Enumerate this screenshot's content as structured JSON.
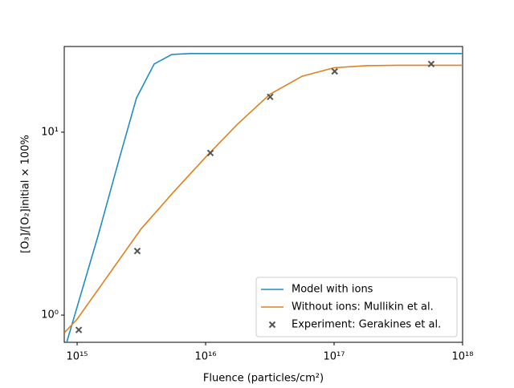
{
  "chart_data": {
    "type": "line",
    "xlabel": "Fluence (particles/cm²)",
    "ylabel": "[O₃]/[O₂]initial × 100%",
    "xscale": "log",
    "yscale": "log",
    "xlim": [
      794000000000000.0,
      1e+18
    ],
    "ylim": [
      0.71,
      29.4
    ],
    "xticks": [
      {
        "value": 1000000000000000.0,
        "label": "10¹⁵"
      },
      {
        "value": 1e+16,
        "label": "10¹⁶"
      },
      {
        "value": 1e+17,
        "label": "10¹⁷"
      },
      {
        "value": 1e+18,
        "label": "10¹⁸"
      }
    ],
    "yticks": [
      {
        "value": 1,
        "label": "10⁰"
      },
      {
        "value": 10,
        "label": "10¹"
      }
    ],
    "legend": "lower right",
    "series": [
      {
        "name": "Model with ions",
        "type": "line",
        "color": "#1f8ebf",
        "x": [
          830000000000000.0,
          1450000000000000.0,
          2110000000000000.0,
          2900000000000000.0,
          3980000000000000.0,
          5460000000000000.0,
          7500000000000000.0,
          1e+17,
          1e+18
        ],
        "values": [
          0.71,
          2.69,
          7.0,
          15.4,
          23.6,
          26.6,
          26.9,
          26.9,
          26.9
        ]
      },
      {
        "name": "Without ions: Mullikin et al.",
        "type": "line",
        "color": "#e0801e",
        "x": [
          794000000000000.0,
          1000000000000000.0,
          3160000000000000.0,
          5620000000000000.0,
          1e+16,
          1.78e+16,
          3.16e+16,
          5.62e+16,
          1e+17,
          1.78e+17,
          3.16e+17,
          1e+18
        ],
        "values": [
          0.8,
          0.95,
          2.97,
          4.7,
          7.3,
          11.1,
          16.1,
          20.2,
          22.5,
          23.1,
          23.2,
          23.2
        ]
      },
      {
        "name": "Experiment: Gerakines et al.",
        "type": "scatter",
        "color": "#555555",
        "x": [
          1030000000000000.0,
          2940000000000000.0,
          1.09e+16,
          3.18e+16,
          1.01e+17,
          5.7e+17
        ],
        "values": [
          0.83,
          2.24,
          7.7,
          15.6,
          21.5,
          23.6
        ]
      }
    ]
  }
}
